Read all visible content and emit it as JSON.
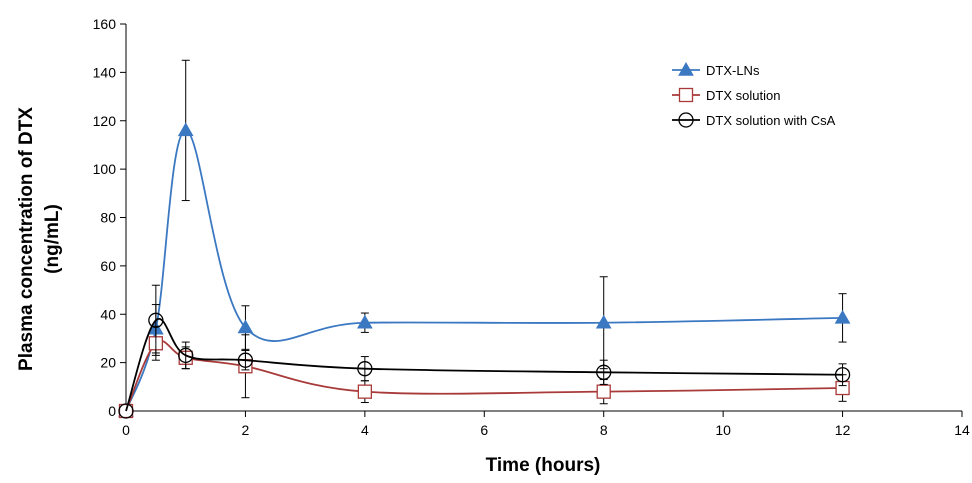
{
  "chart_data": {
    "type": "line",
    "title": "",
    "xlabel": "Time (hours)",
    "ylabel_lines": [
      "Plasma concentration of DTX",
      "(ng/mL)"
    ],
    "xlim": [
      0,
      14
    ],
    "ylim": [
      0,
      160
    ],
    "x_ticks": [
      "0",
      "2",
      "4",
      "6",
      "8",
      "10",
      "12",
      "14"
    ],
    "y_ticks": [
      "0",
      "20",
      "40",
      "60",
      "80",
      "100",
      "120",
      "140",
      "160"
    ],
    "grid": false,
    "legend_position": "top-right",
    "series": [
      {
        "name": "DTX-LNs",
        "color": "#3b78c2",
        "marker": "triangle",
        "x": [
          0,
          0.5,
          1,
          2,
          4,
          8,
          12
        ],
        "y": [
          0,
          34,
          116,
          34.5,
          36.5,
          36.5,
          38.5
        ],
        "error": [
          0,
          10,
          29,
          9,
          4,
          19,
          10
        ]
      },
      {
        "name": "DTX solution",
        "color": "#a93a3a",
        "marker": "square",
        "x": [
          0,
          0.5,
          1,
          2,
          4,
          8,
          12
        ],
        "y": [
          0,
          28,
          22,
          18.5,
          8,
          8,
          9.5
        ],
        "error": [
          0,
          7,
          4.5,
          13,
          4.5,
          5,
          5.5
        ]
      },
      {
        "name": "DTX solution with CsA",
        "color": "#000000",
        "marker": "circle",
        "x": [
          0,
          0.5,
          1,
          2,
          4,
          8,
          12
        ],
        "y": [
          0,
          37.5,
          23,
          21,
          17.5,
          16,
          15
        ],
        "error": [
          0,
          14.5,
          5.5,
          4,
          5,
          5,
          4.5
        ]
      }
    ]
  }
}
